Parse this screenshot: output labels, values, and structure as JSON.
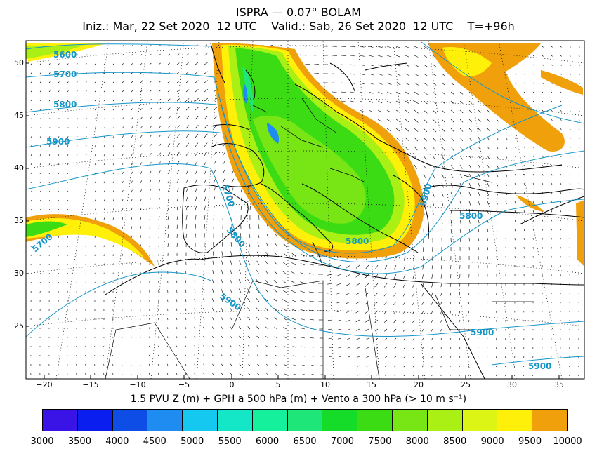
{
  "header": {
    "title": "ISPRA — 0.07° BOLAM",
    "init": "Iniz.: Mar, 22 Set 2020  12 UTC",
    "valid": "Valid.: Sab, 26 Set 2020  12 UTC",
    "lead": "T=+96h"
  },
  "caption": "1.5 PVU Z (m) + GPH a 500 hPa (m) + Vento a 300 hPa (> 10 m s⁻¹)",
  "lat_ticks": [
    "50",
    "45",
    "40",
    "35",
    "30",
    "25"
  ],
  "lon_ticks": [
    "−20",
    "−15",
    "−10",
    "−5",
    "0",
    "5",
    "10",
    "15",
    "20",
    "25",
    "30",
    "35"
  ],
  "contour_labels": [
    "5600",
    "5700",
    "5800",
    "5900",
    "5700",
    "5800",
    "5900",
    "5800",
    "5900",
    "5800",
    "5900",
    "5900",
    "5700"
  ],
  "colorbar": {
    "labels": [
      "3000",
      "3500",
      "4000",
      "4500",
      "5000",
      "5500",
      "6000",
      "6500",
      "7000",
      "7500",
      "8000",
      "8500",
      "9000",
      "9500",
      "10000"
    ],
    "colors": [
      "#3a14e6",
      "#0a1ef0",
      "#0f4ee6",
      "#1e8cf0",
      "#14c8f0",
      "#14e6c8",
      "#14f09c",
      "#1ee678",
      "#14dc28",
      "#3cdc14",
      "#78e614",
      "#aaf014",
      "#dcf514",
      "#fff00a",
      "#f0a00a"
    ]
  },
  "colors": {
    "contour": "#1596c8",
    "coast": "#000000"
  }
}
